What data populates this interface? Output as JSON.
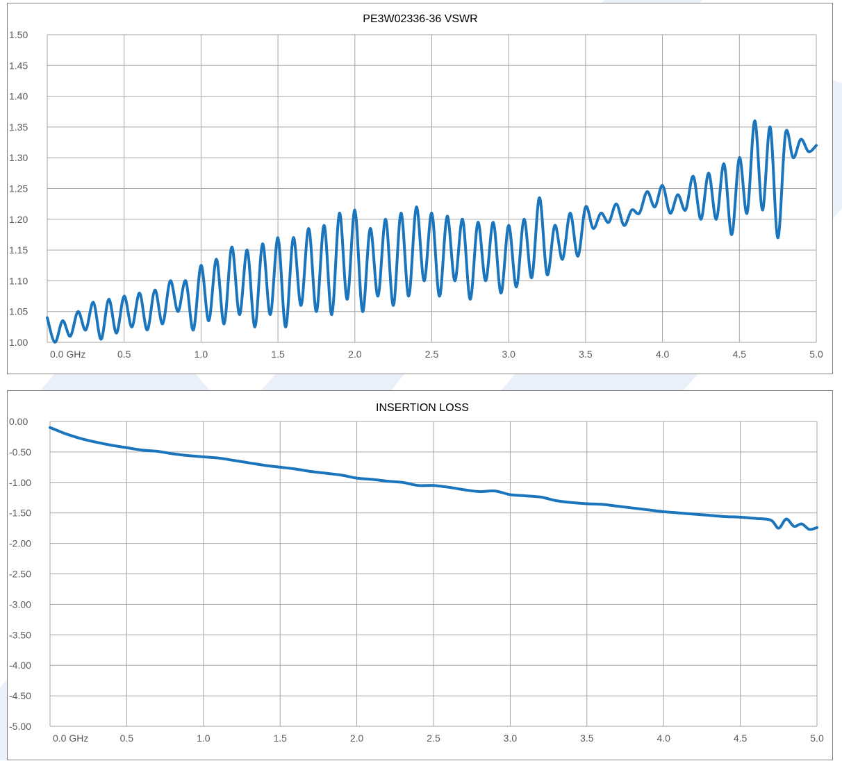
{
  "chart_data": [
    {
      "type": "line",
      "title": "PE3W02336-36 VSWR",
      "xlim": [
        0,
        5
      ],
      "ylim": [
        1.0,
        1.5
      ],
      "x_ticks": [
        {
          "v": 0.0,
          "label": "0.0  GHz"
        },
        {
          "v": 0.5,
          "label": "0.5"
        },
        {
          "v": 1.0,
          "label": "1.0"
        },
        {
          "v": 1.5,
          "label": "1.5"
        },
        {
          "v": 2.0,
          "label": "2.0"
        },
        {
          "v": 2.5,
          "label": "2.5"
        },
        {
          "v": 3.0,
          "label": "3.0"
        },
        {
          "v": 3.5,
          "label": "3.5"
        },
        {
          "v": 4.0,
          "label": "4.0"
        },
        {
          "v": 4.5,
          "label": "4.5"
        },
        {
          "v": 5.0,
          "label": "5.0"
        }
      ],
      "y_ticks": [
        {
          "v": 1.0,
          "label": "1.00"
        },
        {
          "v": 1.05,
          "label": "1.05"
        },
        {
          "v": 1.1,
          "label": "1.10"
        },
        {
          "v": 1.15,
          "label": "1.15"
        },
        {
          "v": 1.2,
          "label": "1.20"
        },
        {
          "v": 1.25,
          "label": "1.25"
        },
        {
          "v": 1.3,
          "label": "1.30"
        },
        {
          "v": 1.35,
          "label": "1.35"
        },
        {
          "v": 1.4,
          "label": "1.40"
        },
        {
          "v": 1.45,
          "label": "1.45"
        },
        {
          "v": 1.5,
          "label": "1.50"
        }
      ],
      "grid": true,
      "series": [
        {
          "color": "#1a75bc",
          "x": [
            0.0,
            0.05,
            0.1,
            0.15,
            0.2,
            0.25,
            0.3,
            0.35,
            0.4,
            0.45,
            0.5,
            0.55,
            0.6,
            0.65,
            0.7,
            0.75,
            0.8,
            0.85,
            0.9,
            0.95,
            1.0,
            1.05,
            1.1,
            1.15,
            1.2,
            1.25,
            1.3,
            1.35,
            1.4,
            1.45,
            1.5,
            1.55,
            1.6,
            1.65,
            1.7,
            1.75,
            1.8,
            1.85,
            1.9,
            1.95,
            2.0,
            2.05,
            2.1,
            2.15,
            2.2,
            2.25,
            2.3,
            2.35,
            2.4,
            2.45,
            2.5,
            2.55,
            2.6,
            2.65,
            2.7,
            2.75,
            2.8,
            2.85,
            2.9,
            2.95,
            3.0,
            3.05,
            3.1,
            3.15,
            3.2,
            3.25,
            3.3,
            3.35,
            3.4,
            3.45,
            3.5,
            3.55,
            3.6,
            3.65,
            3.7,
            3.75,
            3.8,
            3.85,
            3.9,
            3.95,
            4.0,
            4.05,
            4.1,
            4.15,
            4.2,
            4.25,
            4.3,
            4.35,
            4.4,
            4.45,
            4.5,
            4.55,
            4.6,
            4.65,
            4.7,
            4.75,
            4.8,
            4.85,
            4.9,
            4.95,
            5.0
          ],
          "y": [
            1.04,
            1.0,
            1.035,
            1.01,
            1.05,
            1.02,
            1.065,
            1.005,
            1.07,
            1.015,
            1.075,
            1.025,
            1.08,
            1.02,
            1.085,
            1.03,
            1.1,
            1.05,
            1.1,
            1.02,
            1.125,
            1.035,
            1.135,
            1.03,
            1.155,
            1.045,
            1.15,
            1.025,
            1.16,
            1.045,
            1.17,
            1.025,
            1.17,
            1.06,
            1.185,
            1.05,
            1.19,
            1.045,
            1.21,
            1.07,
            1.215,
            1.05,
            1.185,
            1.075,
            1.2,
            1.06,
            1.21,
            1.075,
            1.22,
            1.1,
            1.21,
            1.075,
            1.205,
            1.1,
            1.2,
            1.07,
            1.195,
            1.1,
            1.195,
            1.08,
            1.19,
            1.09,
            1.2,
            1.105,
            1.235,
            1.11,
            1.19,
            1.135,
            1.21,
            1.14,
            1.22,
            1.185,
            1.21,
            1.195,
            1.225,
            1.19,
            1.215,
            1.21,
            1.245,
            1.22,
            1.255,
            1.21,
            1.24,
            1.215,
            1.27,
            1.2,
            1.275,
            1.2,
            1.29,
            1.175,
            1.3,
            1.21,
            1.36,
            1.215,
            1.35,
            1.17,
            1.34,
            1.3,
            1.33,
            1.31,
            1.32
          ]
        }
      ]
    },
    {
      "type": "line",
      "title": "INSERTION LOSS",
      "xlim": [
        0,
        5
      ],
      "ylim": [
        -5.0,
        0.0
      ],
      "x_ticks": [
        {
          "v": 0.0,
          "label": "0.0 GHz"
        },
        {
          "v": 0.5,
          "label": "0.5"
        },
        {
          "v": 1.0,
          "label": "1.0"
        },
        {
          "v": 1.5,
          "label": "1.5"
        },
        {
          "v": 2.0,
          "label": "2.0"
        },
        {
          "v": 2.5,
          "label": "2.5"
        },
        {
          "v": 3.0,
          "label": "3.0"
        },
        {
          "v": 3.5,
          "label": "3.5"
        },
        {
          "v": 4.0,
          "label": "4.0"
        },
        {
          "v": 4.5,
          "label": "4.5"
        },
        {
          "v": 5.0,
          "label": "5.0"
        }
      ],
      "y_ticks": [
        {
          "v": 0.0,
          "label": "0.00"
        },
        {
          "v": -0.5,
          "label": "-0.50"
        },
        {
          "v": -1.0,
          "label": "-1.00"
        },
        {
          "v": -1.5,
          "label": "-1.50"
        },
        {
          "v": -2.0,
          "label": "-2.00"
        },
        {
          "v": -2.5,
          "label": "-2.50"
        },
        {
          "v": -3.0,
          "label": "-3.00"
        },
        {
          "v": -3.5,
          "label": "-3.50"
        },
        {
          "v": -4.0,
          "label": "-4.00"
        },
        {
          "v": -4.5,
          "label": "-4.50"
        },
        {
          "v": -5.0,
          "label": "-5.00"
        }
      ],
      "grid": true,
      "series": [
        {
          "color": "#1a75bc",
          "x": [
            0.0,
            0.05,
            0.1,
            0.2,
            0.3,
            0.4,
            0.5,
            0.6,
            0.7,
            0.8,
            0.9,
            1.0,
            1.1,
            1.2,
            1.3,
            1.4,
            1.5,
            1.6,
            1.7,
            1.8,
            1.9,
            2.0,
            2.1,
            2.2,
            2.3,
            2.4,
            2.5,
            2.6,
            2.7,
            2.8,
            2.9,
            3.0,
            3.1,
            3.2,
            3.3,
            3.4,
            3.5,
            3.6,
            3.7,
            3.8,
            3.9,
            4.0,
            4.1,
            4.2,
            4.3,
            4.4,
            4.5,
            4.6,
            4.7,
            4.75,
            4.8,
            4.85,
            4.9,
            4.95,
            5.0
          ],
          "y": [
            -0.1,
            -0.15,
            -0.2,
            -0.28,
            -0.34,
            -0.39,
            -0.43,
            -0.47,
            -0.49,
            -0.53,
            -0.56,
            -0.58,
            -0.6,
            -0.64,
            -0.68,
            -0.72,
            -0.75,
            -0.78,
            -0.82,
            -0.85,
            -0.88,
            -0.93,
            -0.95,
            -0.98,
            -1.0,
            -1.05,
            -1.05,
            -1.08,
            -1.12,
            -1.15,
            -1.14,
            -1.2,
            -1.22,
            -1.24,
            -1.3,
            -1.33,
            -1.35,
            -1.36,
            -1.39,
            -1.42,
            -1.45,
            -1.48,
            -1.5,
            -1.52,
            -1.54,
            -1.56,
            -1.57,
            -1.59,
            -1.62,
            -1.75,
            -1.6,
            -1.72,
            -1.68,
            -1.77,
            -1.74
          ]
        }
      ]
    }
  ]
}
